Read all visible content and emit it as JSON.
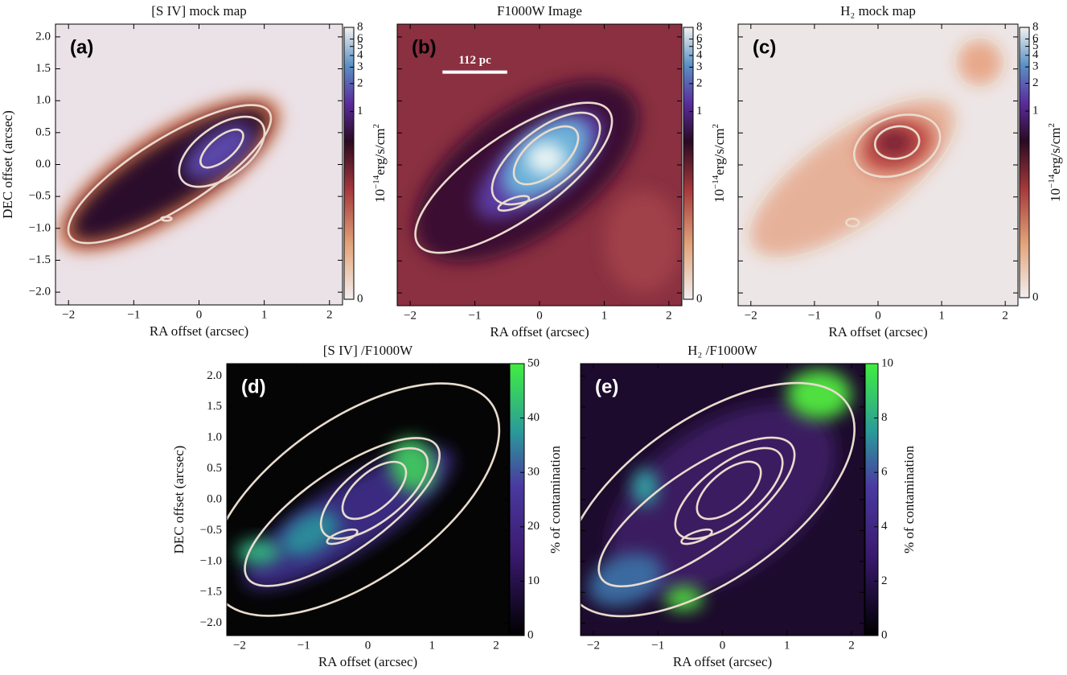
{
  "chart_data": [
    {
      "type": "heatmap",
      "panel_label": "(a)",
      "title": "[S IV] mock map",
      "xlabel": "RA offset (arcsec)",
      "ylabel": "DEC offset (arcsec)",
      "xlim": [
        -2.2,
        2.2
      ],
      "ylim": [
        -2.2,
        2.2
      ],
      "xticks": [
        {
          "value": -2,
          "label": "−2"
        },
        {
          "value": -1,
          "label": "−1"
        },
        0,
        1,
        2
      ],
      "yticks": [
        {
          "value": -2,
          "label": "−2.0"
        },
        {
          "value": -1.5,
          "label": "−1.5"
        },
        {
          "value": -1,
          "label": "−1.0"
        },
        {
          "value": -0.5,
          "label": "−0.5"
        },
        {
          "value": 0,
          "label": "0.0"
        },
        0.5,
        {
          "value": 1,
          "label": "1.0"
        },
        1.5,
        {
          "value": 2,
          "label": "2.0"
        }
      ],
      "colorbar": {
        "lim": [
          0,
          8
        ],
        "scale": "symlog",
        "ticks": [
          0,
          1,
          2,
          3,
          4,
          5,
          6,
          8
        ],
        "label": [
          "10",
          "−14",
          "erg/s/cm",
          "2"
        ]
      }
    },
    {
      "type": "heatmap",
      "panel_label": "(b)",
      "title": "F1000W Image",
      "xlabel": "RA offset (arcsec)",
      "scale_bar": "112 pc",
      "xlim": [
        -2.2,
        2.2
      ],
      "ylim": [
        -2.2,
        2.2
      ],
      "xticks": [
        {
          "value": -2,
          "label": "−2"
        },
        {
          "value": -1,
          "label": "−1"
        },
        0,
        1,
        2
      ],
      "yticks": [
        -2,
        -1.5,
        -1,
        -0.5,
        0,
        0.5,
        1,
        1.5,
        2
      ],
      "colorbar": {
        "lim": [
          0,
          8
        ],
        "scale": "symlog",
        "ticks": [
          0,
          1,
          2,
          3,
          4,
          5,
          6,
          8
        ],
        "label": [
          "10",
          "−14",
          "erg/s/cm",
          "2"
        ]
      }
    },
    {
      "type": "heatmap",
      "panel_label": "(c)",
      "title": "H₂ mock map",
      "xlabel": "RA offset (arcsec)",
      "xlim": [
        -2.2,
        2.2
      ],
      "ylim": [
        -2.2,
        2.2
      ],
      "xticks": [
        {
          "value": -2,
          "label": "−2"
        },
        {
          "value": -1,
          "label": "−1"
        },
        0,
        1,
        2
      ],
      "yticks": [
        -2,
        -1.5,
        -1,
        -0.5,
        0,
        0.5,
        1,
        1.5,
        2
      ],
      "colorbar": {
        "lim": [
          0,
          8
        ],
        "scale": "symlog",
        "ticks": [
          0,
          1,
          2,
          3,
          4,
          5,
          6,
          8
        ],
        "label": [
          "10",
          "−14",
          "erg/s/cm",
          "2"
        ]
      }
    },
    {
      "type": "heatmap",
      "panel_label": "(d)",
      "title": "[S IV] /F1000W",
      "xlabel": "RA offset (arcsec)",
      "ylabel": "DEC offset (arcsec)",
      "xlim": [
        -2.2,
        2.2
      ],
      "ylim": [
        -2.2,
        2.2
      ],
      "xticks": [
        {
          "value": -2,
          "label": "−2"
        },
        {
          "value": -1,
          "label": "−1"
        },
        0,
        1,
        2
      ],
      "yticks": [
        {
          "value": -2,
          "label": "−2.0"
        },
        {
          "value": -1.5,
          "label": "−1.5"
        },
        {
          "value": -1,
          "label": "−1.0"
        },
        {
          "value": -0.5,
          "label": "−0.5"
        },
        {
          "value": 0,
          "label": "0.0"
        },
        0.5,
        {
          "value": 1,
          "label": "1.0"
        },
        1.5,
        {
          "value": 2,
          "label": "2.0"
        }
      ],
      "colorbar": {
        "lim": [
          0,
          50
        ],
        "scale": "linear",
        "ticks": [
          0,
          10,
          20,
          30,
          40,
          50
        ],
        "label": [
          "% of contamination"
        ]
      }
    },
    {
      "type": "heatmap",
      "panel_label": "(e)",
      "title": "H₂ /F1000W",
      "xlabel": "RA offset (arcsec)",
      "xlim": [
        -2.2,
        2.2
      ],
      "ylim": [
        -2.2,
        2.2
      ],
      "xticks": [
        {
          "value": -2,
          "label": "−2"
        },
        {
          "value": -1,
          "label": "−1"
        },
        0,
        1,
        2
      ],
      "yticks": [
        -2,
        -1.5,
        -1,
        -0.5,
        0,
        0.5,
        1,
        1.5,
        2
      ],
      "colorbar": {
        "lim": [
          0,
          10
        ],
        "scale": "linear",
        "ticks": [
          0,
          2,
          4,
          6,
          8,
          10
        ],
        "label": [
          "% of contamination"
        ]
      }
    }
  ]
}
